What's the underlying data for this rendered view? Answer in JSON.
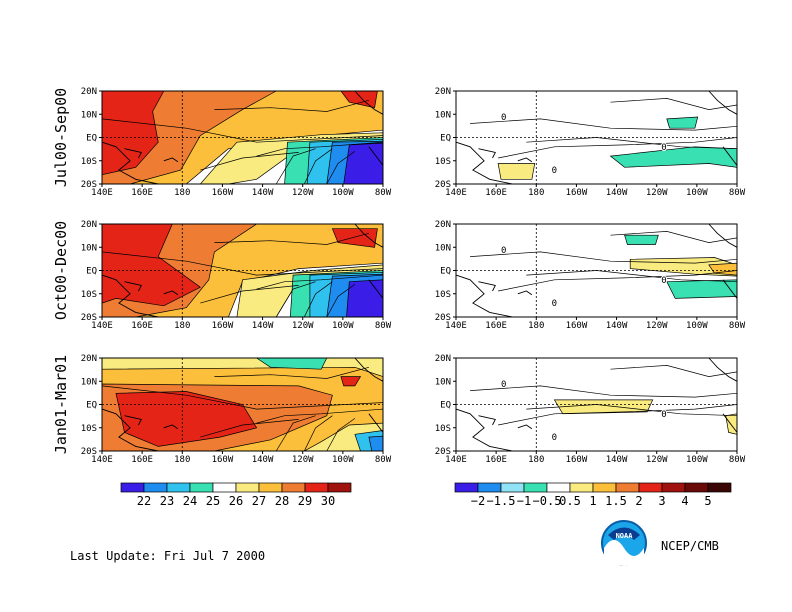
{
  "rows": [
    {
      "label": "Jul00-Sep00"
    },
    {
      "label": "Oct00-Dec00"
    },
    {
      "label": "Jan01-Mar01"
    }
  ],
  "axes": {
    "lat_ticks": [
      "20N",
      "10N",
      "EQ",
      "10S",
      "20S"
    ],
    "lon_ticks": [
      "140E",
      "160E",
      "180",
      "160W",
      "140W",
      "120W",
      "100W",
      "80W"
    ]
  },
  "colorbars": {
    "sst": {
      "labels": [
        "22",
        "23",
        "24",
        "25",
        "26",
        "27",
        "28",
        "29",
        "30"
      ],
      "colors": [
        "#3a1ee8",
        "#1f8cf0",
        "#30c2ee",
        "#39e0b2",
        "#ffffff",
        "#f9eb80",
        "#fcbf3b",
        "#ee7c32",
        "#e52418",
        "#a0120d"
      ]
    },
    "anom": {
      "labels": [
        "−2",
        "−1.5",
        "−1",
        "−0.5",
        "0.5",
        "1",
        "1.5",
        "2",
        "3",
        "4",
        "5"
      ],
      "colors": [
        "#3a1ee8",
        "#1f8cf0",
        "#8fe3f4",
        "#39e0b2",
        "#ffffff",
        "#f9eb80",
        "#fcbf3b",
        "#ee7c32",
        "#e52418",
        "#a0120d",
        "#6a0a08",
        "#3a0606"
      ]
    }
  },
  "contour_labels": [
    "0"
  ],
  "footer": {
    "last_update": "Last Update:  Fri Jul 7 2000",
    "logo_text": "NOAA",
    "agency": "NCEP/CMB"
  },
  "colors": {
    "red": "#e52418",
    "orange": "#ee7c32",
    "lightorange": "#fcbf3b",
    "yellow": "#f9eb80",
    "teal": "#39e0b2",
    "cyan": "#30c2ee",
    "blue": "#1f8cf0",
    "violet": "#3a1ee8"
  }
}
